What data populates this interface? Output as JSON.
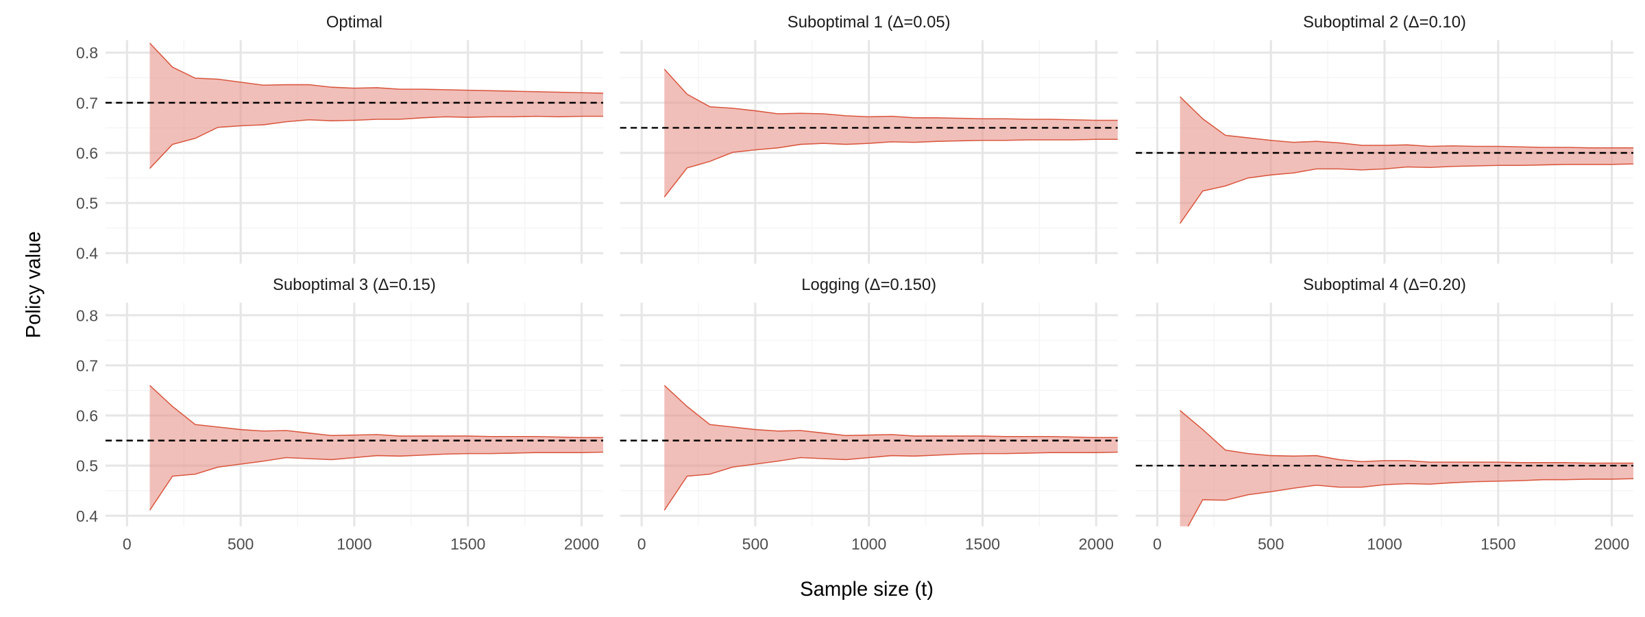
{
  "chart_data": {
    "type": "area",
    "xlabel": "Sample size (t)",
    "ylabel": "Policy value",
    "xlim": [
      -95,
      2095
    ],
    "ylim": [
      0.379,
      0.825
    ],
    "x_ticks": [
      0,
      500,
      1000,
      1500,
      2000
    ],
    "y_ticks": [
      0.4,
      0.5,
      0.6,
      0.7,
      0.8
    ],
    "y_tick_labels": [
      "0.4",
      "0.5",
      "0.6",
      "0.7",
      "0.8"
    ],
    "grid": true,
    "layout": "facet 2 rows x 3 columns",
    "colors": {
      "ribbon_fill": "#e8958a",
      "ribbon_line": "#d9573f",
      "reference_line": "#000000",
      "grid_major": "#e6e6e6",
      "grid_minor": "#f5f5f5"
    },
    "x": [
      100,
      200,
      300,
      400,
      500,
      600,
      700,
      800,
      900,
      1000,
      1100,
      1200,
      1300,
      1400,
      1500,
      1600,
      1700,
      1800,
      1900,
      2000,
      2100
    ],
    "panels": [
      {
        "title": "Optimal",
        "true_value": 0.7,
        "upper": [
          0.819,
          0.771,
          0.749,
          0.747,
          0.741,
          0.735,
          0.736,
          0.736,
          0.731,
          0.729,
          0.73,
          0.727,
          0.727,
          0.726,
          0.725,
          0.724,
          0.723,
          0.722,
          0.721,
          0.72,
          0.719
        ],
        "lower": [
          0.569,
          0.617,
          0.629,
          0.651,
          0.654,
          0.656,
          0.662,
          0.666,
          0.664,
          0.665,
          0.667,
          0.667,
          0.67,
          0.672,
          0.671,
          0.672,
          0.672,
          0.673,
          0.672,
          0.673,
          0.673
        ]
      },
      {
        "title": "Suboptimal 1 (Δ=0.05)",
        "true_value": 0.65,
        "upper": [
          0.767,
          0.717,
          0.692,
          0.689,
          0.684,
          0.678,
          0.679,
          0.678,
          0.674,
          0.672,
          0.673,
          0.67,
          0.67,
          0.669,
          0.668,
          0.668,
          0.667,
          0.667,
          0.666,
          0.665,
          0.665
        ],
        "lower": [
          0.512,
          0.57,
          0.583,
          0.601,
          0.606,
          0.61,
          0.617,
          0.619,
          0.617,
          0.619,
          0.622,
          0.621,
          0.623,
          0.624,
          0.625,
          0.625,
          0.626,
          0.626,
          0.626,
          0.627,
          0.627
        ]
      },
      {
        "title": "Suboptimal 2 (Δ=0.10)",
        "true_value": 0.6,
        "upper": [
          0.712,
          0.668,
          0.635,
          0.63,
          0.625,
          0.621,
          0.623,
          0.62,
          0.615,
          0.615,
          0.616,
          0.613,
          0.614,
          0.613,
          0.613,
          0.612,
          0.611,
          0.611,
          0.61,
          0.61,
          0.61
        ],
        "lower": [
          0.459,
          0.524,
          0.534,
          0.55,
          0.556,
          0.56,
          0.568,
          0.568,
          0.566,
          0.568,
          0.572,
          0.571,
          0.573,
          0.574,
          0.575,
          0.575,
          0.576,
          0.577,
          0.577,
          0.577,
          0.578
        ]
      },
      {
        "title": "Suboptimal 3 (Δ=0.15)",
        "true_value": 0.55,
        "upper": [
          0.66,
          0.618,
          0.582,
          0.577,
          0.572,
          0.569,
          0.57,
          0.565,
          0.56,
          0.561,
          0.562,
          0.559,
          0.559,
          0.559,
          0.559,
          0.558,
          0.558,
          0.558,
          0.557,
          0.556,
          0.556
        ],
        "lower": [
          0.411,
          0.479,
          0.483,
          0.497,
          0.503,
          0.509,
          0.516,
          0.514,
          0.512,
          0.516,
          0.52,
          0.519,
          0.521,
          0.523,
          0.524,
          0.524,
          0.525,
          0.526,
          0.526,
          0.526,
          0.527
        ]
      },
      {
        "title": "Logging (Δ=0.150)",
        "true_value": 0.55,
        "upper": [
          0.66,
          0.618,
          0.582,
          0.577,
          0.572,
          0.569,
          0.57,
          0.565,
          0.56,
          0.561,
          0.562,
          0.559,
          0.559,
          0.559,
          0.559,
          0.558,
          0.558,
          0.558,
          0.557,
          0.556,
          0.556
        ],
        "lower": [
          0.411,
          0.479,
          0.483,
          0.497,
          0.503,
          0.509,
          0.516,
          0.514,
          0.512,
          0.516,
          0.52,
          0.519,
          0.521,
          0.523,
          0.524,
          0.524,
          0.525,
          0.526,
          0.526,
          0.526,
          0.527
        ]
      },
      {
        "title": "Suboptimal 4 (Δ=0.20)",
        "true_value": 0.5,
        "upper": [
          0.61,
          0.572,
          0.531,
          0.524,
          0.52,
          0.519,
          0.52,
          0.512,
          0.508,
          0.51,
          0.51,
          0.507,
          0.507,
          0.507,
          0.507,
          0.506,
          0.506,
          0.506,
          0.505,
          0.505,
          0.505
        ],
        "lower": [
          0.35,
          0.432,
          0.431,
          0.442,
          0.448,
          0.455,
          0.461,
          0.457,
          0.457,
          0.462,
          0.464,
          0.463,
          0.466,
          0.468,
          0.469,
          0.47,
          0.472,
          0.472,
          0.473,
          0.473,
          0.474
        ]
      }
    ]
  }
}
